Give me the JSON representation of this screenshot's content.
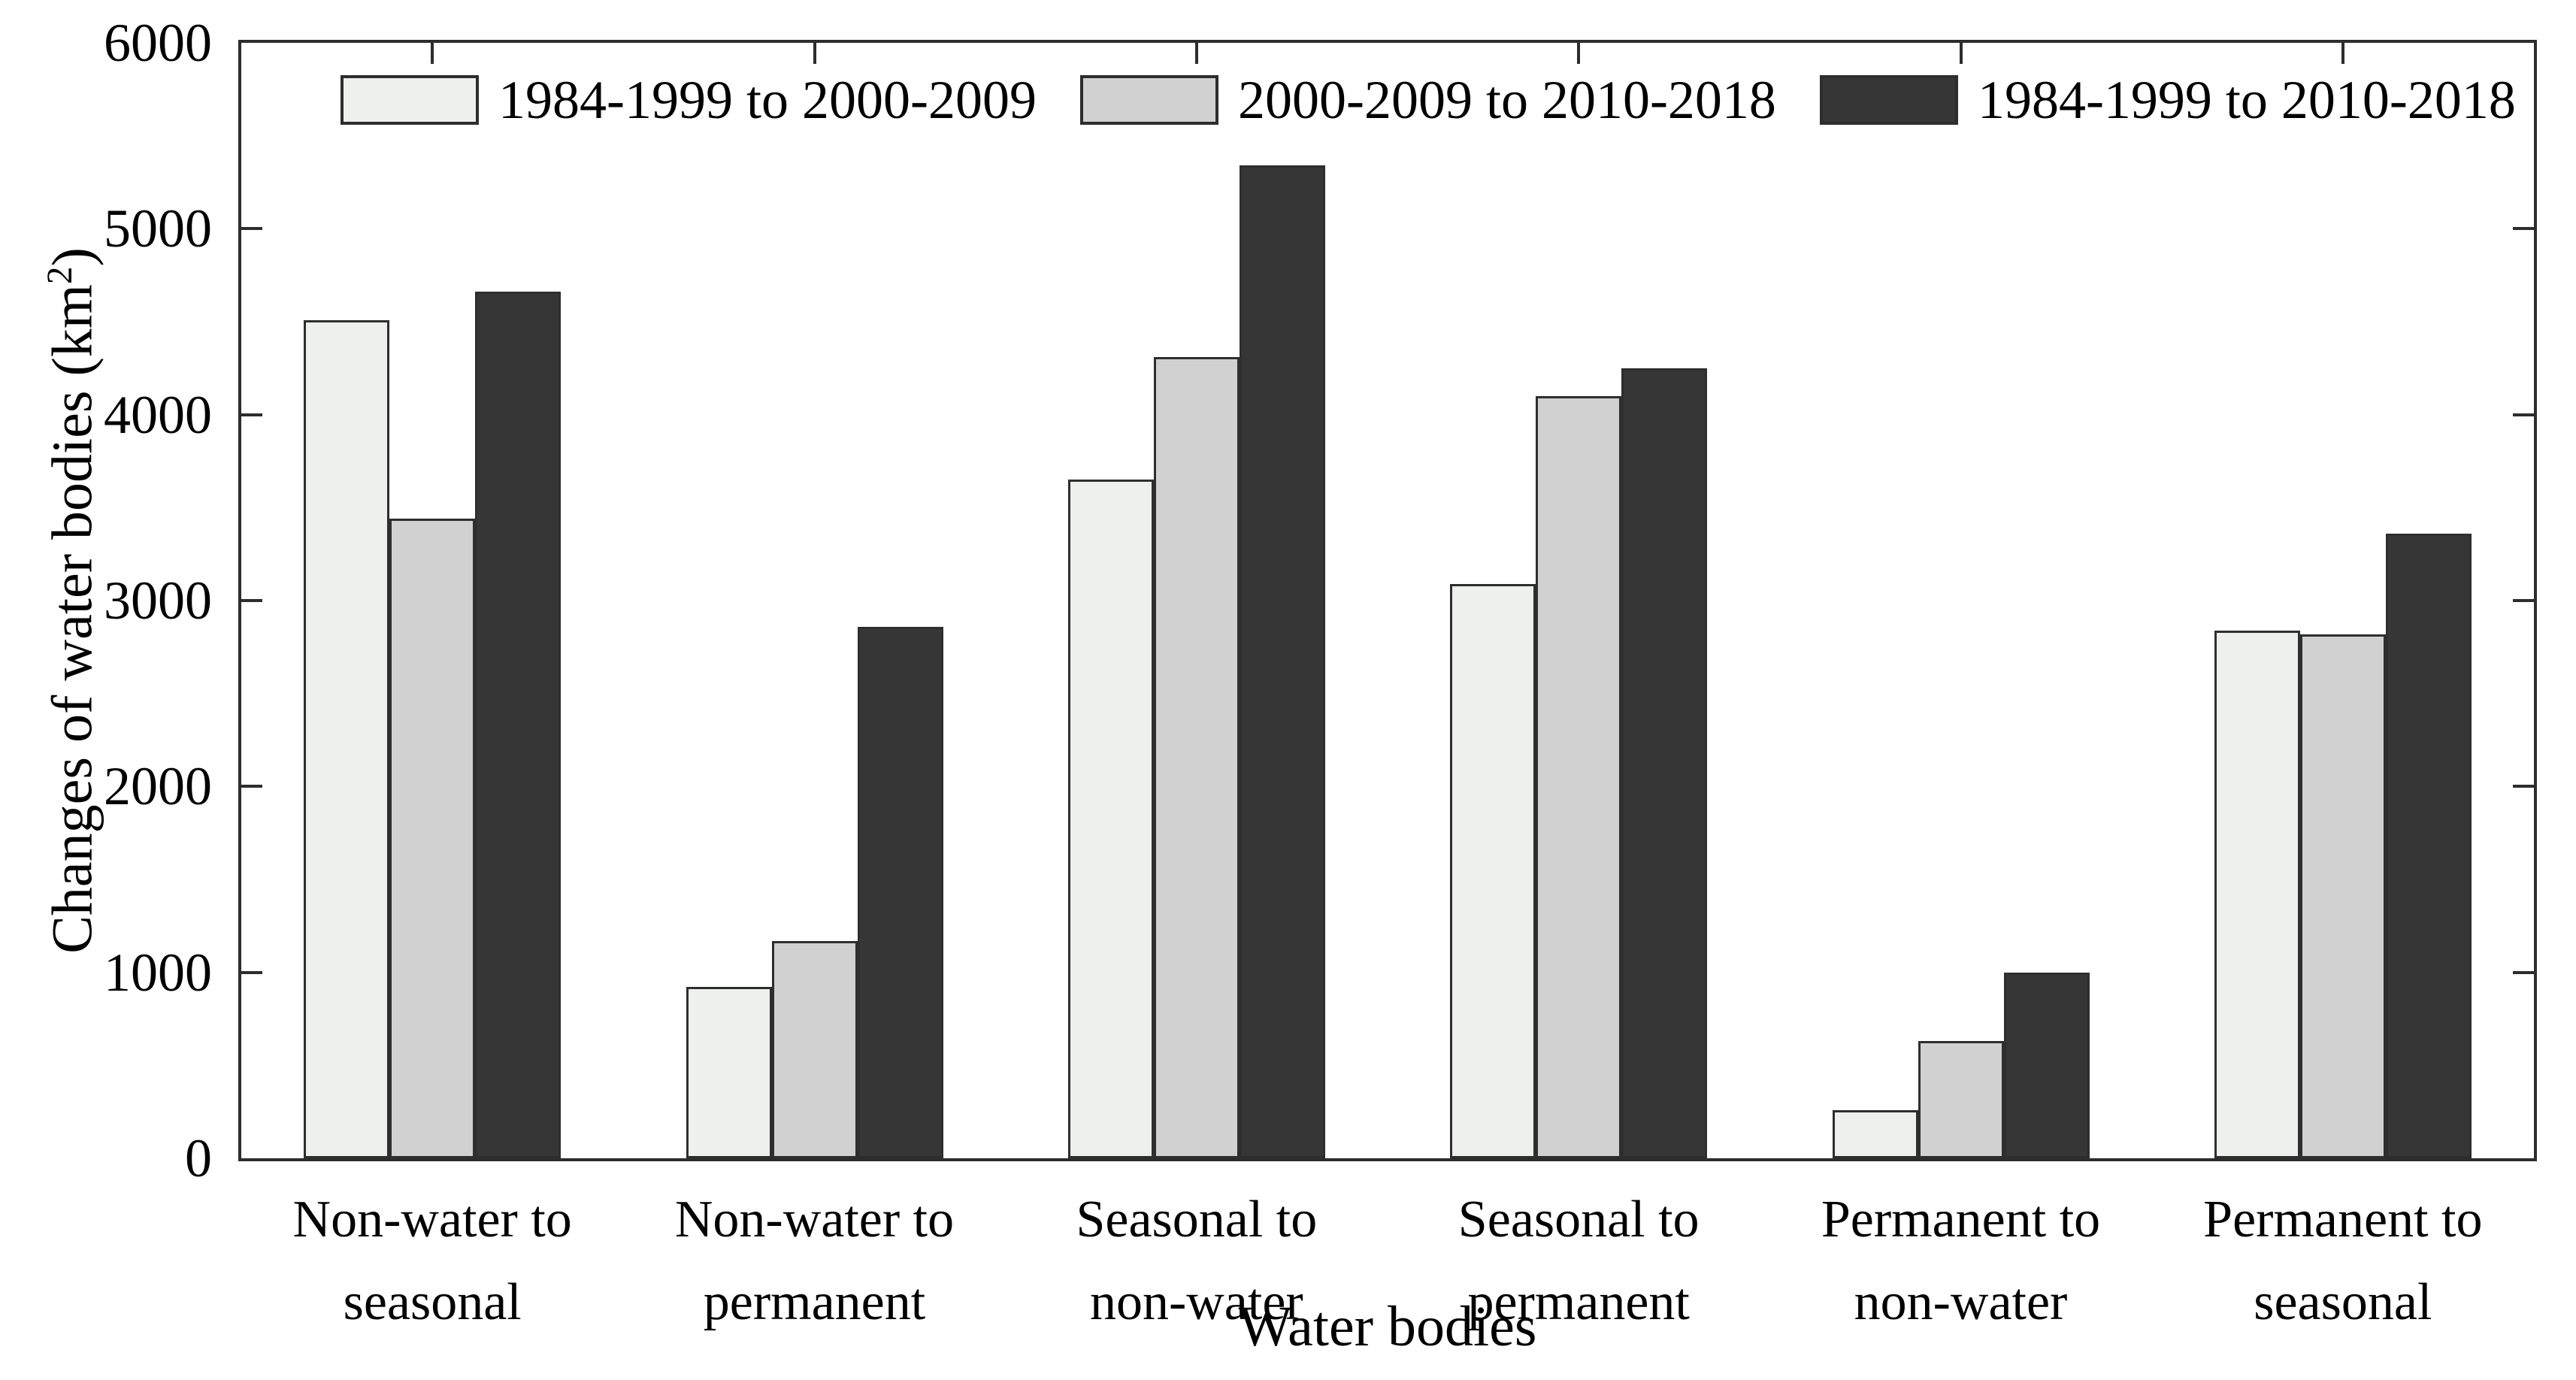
{
  "chart_data": {
    "type": "bar",
    "title": "",
    "xlabel": "Water bodies",
    "ylabel": {
      "prefix": "Changes of water bodies (km",
      "sup": "2",
      "suffix": ")"
    },
    "categories": [
      [
        "Non-water to",
        "seasonal"
      ],
      [
        "Non-water to",
        "permanent"
      ],
      [
        "Seasonal to",
        "non-water"
      ],
      [
        "Seasonal to",
        "permanent"
      ],
      [
        "Permanent to",
        "non-water"
      ],
      [
        "Permanent to",
        "seasonal"
      ]
    ],
    "series": [
      {
        "name": "1984-1999 to 2000-2009",
        "color": "#eef0ed",
        "values": [
          4510,
          920,
          3650,
          3090,
          260,
          2840
        ]
      },
      {
        "name": "2000-2009 to 2010-2018",
        "color": "#d0d1d0",
        "values": [
          3440,
          1170,
          4310,
          4100,
          630,
          2820
        ]
      },
      {
        "name": "1984-1999 to 2010-2018",
        "color": "#363636",
        "values": [
          4660,
          2860,
          5340,
          4250,
          1000,
          3360
        ]
      }
    ],
    "ylim": [
      0,
      6000
    ],
    "yticks": [
      0,
      1000,
      2000,
      3000,
      4000,
      5000,
      6000
    ],
    "grid": "off",
    "legend_position": "top-inside",
    "axis_color": "#2d2d2d"
  }
}
